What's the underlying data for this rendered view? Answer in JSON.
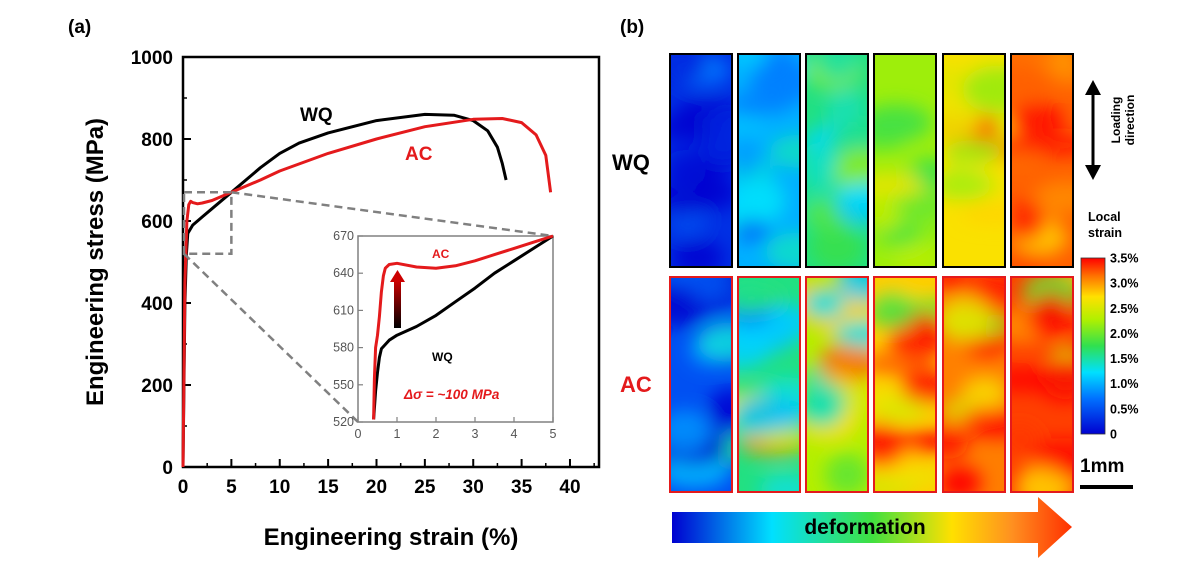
{
  "colors": {
    "WQ": "#000000",
    "AC": "#e41a1c",
    "box": "#808080",
    "scalebar": "#000000"
  },
  "chart_data": [
    {
      "type": "line",
      "panel_label": "(a)",
      "xlabel": "Engineering strain (%)",
      "ylabel": "Engineering stress (MPa)",
      "xlim": [
        0,
        43
      ],
      "ylim": [
        0,
        1000
      ],
      "x_ticks": [
        "0",
        "5",
        "10",
        "15",
        "20",
        "25",
        "30",
        "35",
        "40"
      ],
      "y_ticks": [
        "0",
        "200",
        "400",
        "600",
        "800",
        "1000"
      ],
      "series": [
        {
          "name": "WQ",
          "color": "#000000",
          "x": [
            0,
            0.2,
            0.35,
            0.5,
            1,
            2,
            3,
            5,
            8,
            10,
            12,
            15,
            20,
            25,
            28,
            30,
            31.5,
            32.5,
            33,
            33.4
          ],
          "y": [
            0,
            400,
            520,
            570,
            590,
            610,
            630,
            670,
            730,
            765,
            790,
            815,
            845,
            860,
            858,
            845,
            820,
            780,
            740,
            700
          ]
        },
        {
          "name": "AC",
          "color": "#e41a1c",
          "x": [
            0,
            0.2,
            0.4,
            0.6,
            0.8,
            1,
            1.5,
            2,
            3,
            5,
            8,
            10,
            15,
            20,
            25,
            30,
            33,
            35,
            36.5,
            37.5,
            38
          ],
          "y": [
            0,
            450,
            600,
            640,
            648,
            645,
            642,
            644,
            650,
            670,
            700,
            722,
            765,
            800,
            830,
            848,
            850,
            840,
            810,
            760,
            670
          ]
        }
      ],
      "zoom_box": {
        "x": [
          0,
          5
        ],
        "y": [
          520,
          670
        ]
      }
    },
    {
      "type": "line",
      "panel_label": "inset",
      "xlim": [
        0,
        5
      ],
      "ylim": [
        520,
        670
      ],
      "x_ticks": [
        "0",
        "1",
        "2",
        "3",
        "4",
        "5"
      ],
      "y_ticks": [
        "520",
        "550",
        "580",
        "610",
        "640",
        "670"
      ],
      "annotations": [
        "AC",
        "WQ",
        "Δσ = ~100 MPa"
      ],
      "series": [
        {
          "name": "WQ",
          "color": "#000000",
          "x": [
            0.4,
            0.45,
            0.5,
            0.55,
            0.6,
            0.8,
            1.0,
            1.5,
            2.0,
            2.5,
            3.0,
            3.5,
            4.0,
            4.5,
            5.0
          ],
          "y": [
            522,
            545,
            560,
            572,
            579,
            586,
            590,
            597,
            606,
            617,
            628,
            640,
            650,
            660,
            670
          ]
        },
        {
          "name": "AC",
          "color": "#e41a1c",
          "x": [
            0.4,
            0.42,
            0.45,
            0.5,
            0.55,
            0.6,
            0.65,
            0.7,
            0.8,
            1.0,
            1.5,
            2.0,
            2.5,
            3.0,
            3.5,
            4.0,
            4.5,
            5.0
          ],
          "y": [
            522,
            555,
            580,
            590,
            605,
            625,
            638,
            644,
            647,
            648,
            645,
            644,
            646,
            650,
            655,
            660,
            665,
            670
          ]
        }
      ]
    },
    {
      "type": "heatmap",
      "panel_label": "(b)",
      "row_labels": [
        "WQ",
        "AC"
      ],
      "colorbar_title": [
        "Local",
        "strain"
      ],
      "colorbar_ticks": [
        "3.5%",
        "3.0%",
        "2.5%",
        "2.0%",
        "1.5%",
        "1.0%",
        "0.5%",
        "0"
      ],
      "colorbar_range": [
        0,
        3.5
      ],
      "side_label": [
        "Loading",
        "direction"
      ],
      "scale_bar": "1mm",
      "arrow_label": "deformation",
      "frames_per_row": 6,
      "mean_local_strain_WQ": [
        0.3,
        1.0,
        1.6,
        2.2,
        2.7,
        3.2
      ],
      "mean_local_strain_AC": [
        0.5,
        1.6,
        2.3,
        2.8,
        3.1,
        3.3
      ]
    }
  ]
}
